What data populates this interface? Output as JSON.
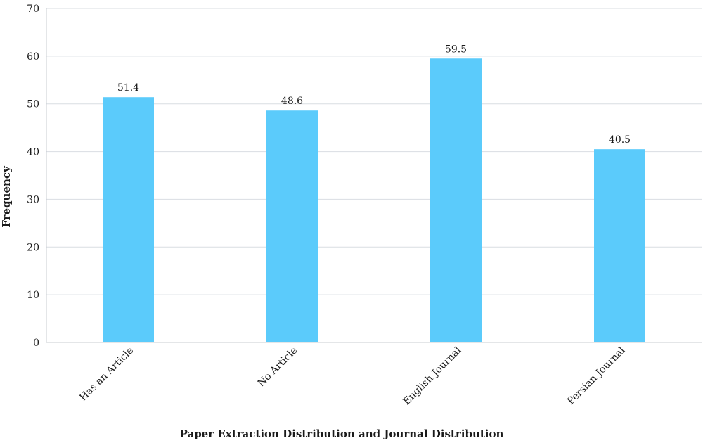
{
  "chart_data": {
    "type": "bar",
    "categories": [
      "Has an Article",
      "No Article",
      "English Journal",
      "Persian Journal"
    ],
    "values": [
      51.4,
      48.6,
      59.5,
      40.5
    ],
    "data_labels": [
      "51.4",
      "48.6",
      "59.5",
      "40.5"
    ],
    "title": "",
    "xlabel": "Paper Extraction Distribution and Journal Distribution",
    "ylabel": "Frequency",
    "ylim": [
      0,
      70
    ],
    "yticks": [
      0,
      10,
      20,
      30,
      40,
      50,
      60,
      70
    ],
    "ytick_labels": [
      "0",
      "10",
      "20",
      "30",
      "40",
      "50",
      "60",
      "70"
    ],
    "grid": true,
    "legend": "none",
    "bar_color": "#5bcbfb"
  }
}
